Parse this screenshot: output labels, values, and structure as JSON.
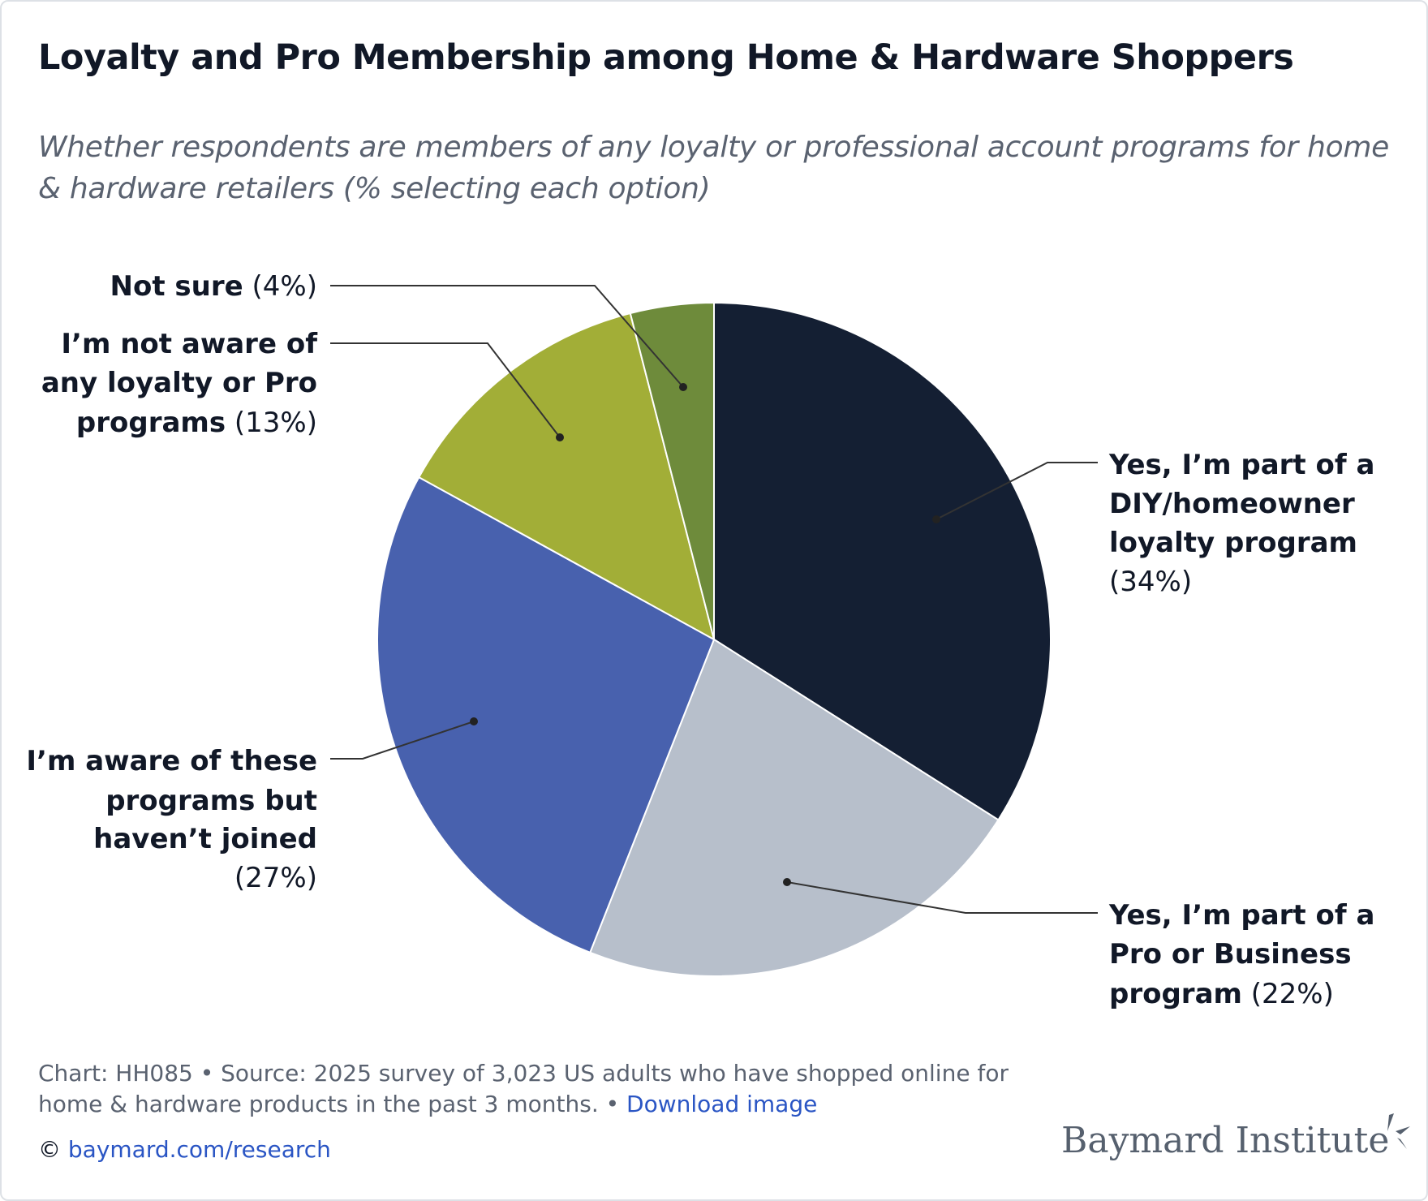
{
  "chart_data": {
    "type": "pie",
    "title": "Loyalty and Pro Membership among Home & Hardware Shoppers",
    "subtitle": "Whether respondents are members of any loyalty or professional account programs for home & hardware retailers (% selecting each option)",
    "start_angle": "top, clockwise",
    "slices": [
      {
        "name": "Yes, I'm part of a DIY/homeowner loyalty program",
        "value": 34,
        "color": "#141f33",
        "lines": [
          {
            "b": "Yes, I’m part of a",
            "r": ""
          },
          {
            "b": "DIY/homeowner",
            "r": ""
          },
          {
            "b": "loyalty program",
            "r": ""
          },
          {
            "b": "",
            "r": "(34%)"
          }
        ]
      },
      {
        "name": "Yes, I'm part of a Pro or Business program",
        "value": 22,
        "color": "#b7bfcb",
        "lines": [
          {
            "b": "Yes, I’m part of a",
            "r": ""
          },
          {
            "b": "Pro or Business",
            "r": ""
          },
          {
            "b": "program",
            "r": " (22%)"
          }
        ]
      },
      {
        "name": "I'm aware of these programs but haven't joined",
        "value": 27,
        "color": "#4861ae",
        "lines": [
          {
            "b": "I’m aware of these",
            "r": ""
          },
          {
            "b": "programs but",
            "r": ""
          },
          {
            "b": "haven’t joined",
            "r": ""
          },
          {
            "b": "",
            "r": "(27%)"
          }
        ]
      },
      {
        "name": "I'm not aware of any loyalty or Pro programs",
        "value": 13,
        "color": "#a2ae37",
        "lines": [
          {
            "b": "I’m not aware of",
            "r": ""
          },
          {
            "b": "any loyalty or Pro",
            "r": ""
          },
          {
            "b": "programs",
            "r": " (13%)"
          }
        ]
      },
      {
        "name": "Not sure",
        "value": 4,
        "color": "#6e8b3b",
        "lines": [
          {
            "b": "Not sure",
            "r": " (4%)"
          }
        ]
      }
    ]
  },
  "footer": {
    "line1": "Chart: HH085 • Source: 2025 survey of 3,023 US adults who have shopped online for",
    "line2": "home & hardware products in the past 3 months. • ",
    "download": "Download image",
    "copyright": "© ",
    "site": "baymard.com/research"
  },
  "logo": "Baymard Institute"
}
